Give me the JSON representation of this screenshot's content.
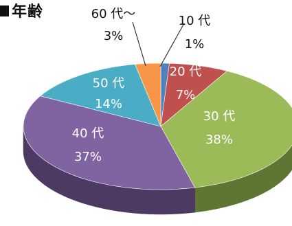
{
  "chart_data": {
    "type": "pie",
    "title": "年齢",
    "categories": [
      "10代",
      "20代",
      "30代",
      "40代",
      "50代",
      "60代〜"
    ],
    "values": [
      1,
      7,
      38,
      37,
      14,
      3
    ],
    "series": [
      {
        "values": [
          1,
          7,
          38,
          37,
          14,
          3
        ]
      }
    ],
    "slices": [
      {
        "label": "10 代",
        "value": 1,
        "value_label": "1%",
        "color": "#4f81bd",
        "side_color": "#2f4f7a"
      },
      {
        "label": "20 代",
        "value": 7,
        "value_label": "7%",
        "color": "#c0504d",
        "side_color": "#7a2f2d"
      },
      {
        "label": "30 代",
        "value": 38,
        "value_label": "38%",
        "color": "#9bbb59",
        "side_color": "#5e7534"
      },
      {
        "label": "40 代",
        "value": 37,
        "value_label": "37%",
        "color": "#8064a2",
        "side_color": "#4c3a63"
      },
      {
        "label": "50 代",
        "value": 14,
        "value_label": "14%",
        "color": "#4bacc6",
        "side_color": "#2a6878"
      },
      {
        "label": "60 代〜",
        "value": 3,
        "value_label": "3%",
        "color": "#f79646",
        "side_color": "#a35a1e"
      }
    ],
    "start_angle_deg": 0,
    "direction": "clockwise",
    "style": "3d",
    "legend": "none",
    "grid": false
  }
}
